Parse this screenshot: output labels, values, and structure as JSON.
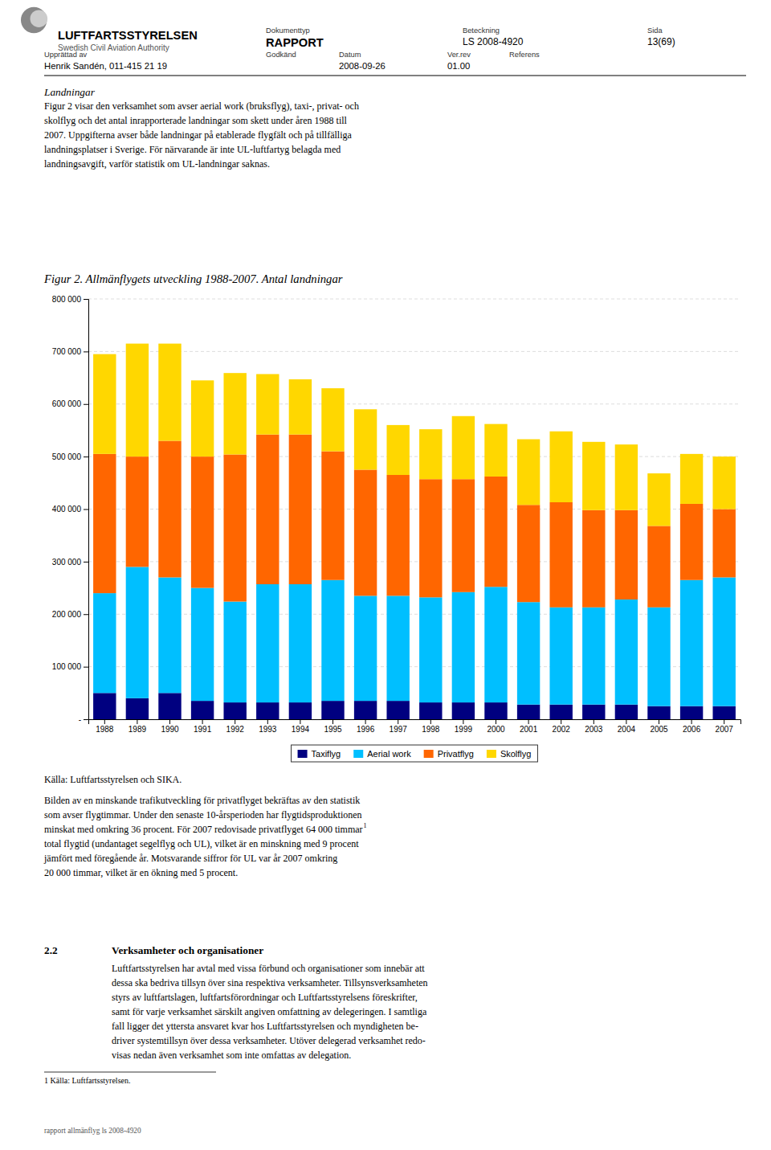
{
  "chart_data": {
    "type": "bar",
    "stacked": true,
    "title": "Figur 2. Allmänflygets utveckling 1988-2007. Antal landningar",
    "categories": [
      "1988",
      "1989",
      "1990",
      "1991",
      "1992",
      "1993",
      "1994",
      "1995",
      "1996",
      "1997",
      "1998",
      "1999",
      "2000",
      "2001",
      "2002",
      "2003",
      "2004",
      "2005",
      "2006",
      "2007"
    ],
    "series": [
      {
        "name": "Taxiflyg",
        "color": "#000080",
        "values": [
          50000,
          40000,
          50000,
          35000,
          32000,
          32000,
          32000,
          35000,
          35000,
          35000,
          32000,
          32000,
          32000,
          28000,
          28000,
          28000,
          28000,
          25000,
          25000,
          25000
        ]
      },
      {
        "name": "Aerial work",
        "color": "#00BFFF",
        "values": [
          190000,
          250000,
          220000,
          215000,
          192000,
          225000,
          225000,
          230000,
          200000,
          200000,
          200000,
          210000,
          220000,
          195000,
          185000,
          185000,
          200000,
          188000,
          240000,
          245000
        ]
      },
      {
        "name": "Privatflyg",
        "color": "#FF6600",
        "values": [
          265000,
          210000,
          260000,
          250000,
          280000,
          285000,
          285000,
          245000,
          240000,
          230000,
          225000,
          215000,
          210000,
          185000,
          200000,
          185000,
          170000,
          155000,
          145000,
          130000
        ]
      },
      {
        "name": "Skolflyg",
        "color": "#FFD700",
        "values": [
          190000,
          215000,
          185000,
          145000,
          155000,
          115000,
          105000,
          120000,
          115000,
          95000,
          95000,
          120000,
          100000,
          125000,
          135000,
          130000,
          125000,
          100000,
          95000,
          100000
        ]
      }
    ],
    "ylim": [
      0,
      800000
    ],
    "yticks": [
      {
        "value": 0,
        "label": "-"
      },
      {
        "value": 100000,
        "label": "100 000"
      },
      {
        "value": 200000,
        "label": "200 000"
      },
      {
        "value": 300000,
        "label": "300 000"
      },
      {
        "value": 400000,
        "label": "400 000"
      },
      {
        "value": 500000,
        "label": "500 000"
      },
      {
        "value": 600000,
        "label": "600 000"
      },
      {
        "value": 700000,
        "label": "700 000"
      },
      {
        "value": 800000,
        "label": "800 000"
      }
    ],
    "grid": true,
    "legend": "bottom"
  },
  "page": {
    "background_color": "#FFFFFF",
    "header": {
      "org_name": "LUFTFARTSSTYRELSEN",
      "org_sub": "Swedish Civil Aviation Authority",
      "doc_type_label": "Dokumenttyp",
      "doc_type_value": "RAPPORT",
      "beteckning_label": "Beteckning",
      "beteckning_value": "LS 2008-4920",
      "sida_label": "Sida",
      "sida_value": "13(69)",
      "upprattad_label": "Upprättad av",
      "upprattad_value": "Henrik Sandén, 011-415 21 19",
      "godkand_label": "Godkänd",
      "datum_label": "Datum",
      "datum_value": "2008-09-26",
      "verrev_label": "Ver.rev",
      "verrev_value": "01.00",
      "referens_label": "Referens"
    },
    "body_title": "Landningar",
    "body_text1": "Figur 2 visar den verksamhet som avser aerial work (bruksflyg), taxi-, privat- och\nskolflyg och det antal inrapporterade landningar som skett under åren 1988 till\n2007. Uppgifterna avser både landningar på etablerade flygfält och på tillfälliga\nlandningsplatser i Sverige. För närvarande är inte UL-luftfartyg belagda med\nlandningsavgift, varför statistik om UL-landningar saknas.",
    "source_text": "Källa: Luftfartsstyrelsen och SIKA.",
    "body_text2": "Bilden av en minskande trafikutveckling för privatflyget bekräftas av den statistik\nsom avser flygtimmar. Under den senaste 10-årsperioden har flygtidsproduktionen\nminskat med omkring 36 procent. För 2007 redovisade privatflyget 64 000 timmar\ntotal flygtid (undantaget segelflyg och UL), vilket är en minskning med 9 procent\njämfört med föregående år. Motsvarande siffror för UL var år 2007 omkring\n20 000 timmar, vilket är en ökning med 5 procent.",
    "footnote_marker": "1",
    "section_num": "2.2",
    "section_title": "Verksamheter och organisationer",
    "section_text": "Luftfartsstyrelsen har avtal med vissa förbund och organisationer som innebär att\ndessa ska bedriva tillsyn över sina respektiva verksamheter. Tillsynsverksamheten\nstyrs av luftfartslagen, luftfartsförordningar och Luftfartsstyrelsens föreskrifter,\nsamt för varje verksamhet särskilt angiven omfattning av delegeringen. I samtliga\nfall ligger det yttersta ansvaret kvar hos Luftfartsstyrelsen och myndigheten be-\ndriver systemtillsyn över dessa verksamheter. Utöver delegerad verksamhet redo-\nvisas nedan även verksamhet som inte omfattas av delegation.",
    "footnote": "1 Källa: Luftfartsstyrelsen.",
    "footer_text": "rapport allmänflyg ls 2008-4920"
  }
}
